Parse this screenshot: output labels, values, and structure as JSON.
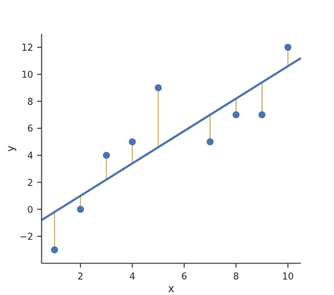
{
  "chart_data": {
    "type": "scatter",
    "title": "",
    "xlabel": "x",
    "ylabel": "y",
    "xlim": [
      0.5,
      10.5
    ],
    "ylim": [
      -4,
      13
    ],
    "xticks": [
      2,
      4,
      6,
      8,
      10
    ],
    "yticks": [
      -2,
      0,
      2,
      4,
      6,
      8,
      10,
      12
    ],
    "x": [
      1,
      2,
      3,
      4,
      5,
      7,
      8,
      9,
      10
    ],
    "y": [
      -3,
      0,
      4,
      5,
      9,
      5,
      7,
      7,
      12
    ],
    "fit_line": {
      "slope": 1.2,
      "intercept": -1.4
    },
    "residual_lines": true,
    "grid": false,
    "colors": {
      "points": "#4c72b0",
      "line": "#4c72b0",
      "residuals": "#c4ad66",
      "axis": "#262626"
    }
  }
}
